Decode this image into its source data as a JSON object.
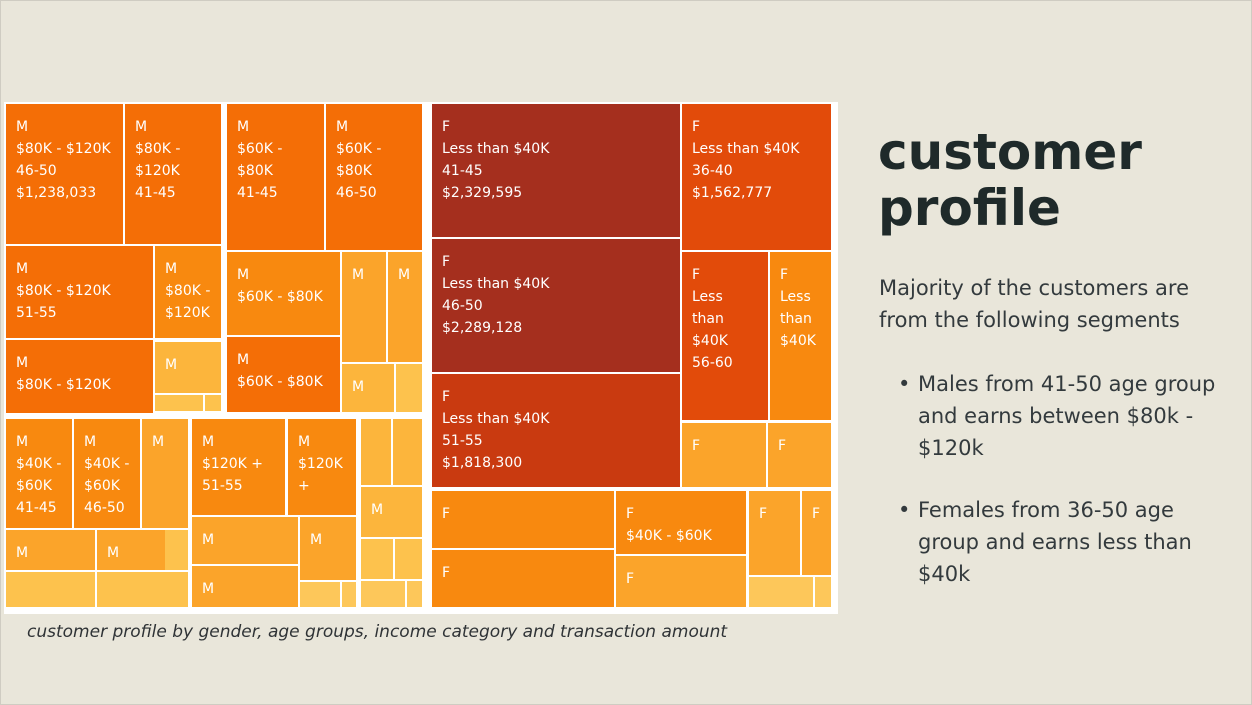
{
  "chart_data": {
    "type": "treemap",
    "caption": "customer profile by gender, age groups, income category and transaction amount",
    "colors": {
      "darkest": "#a52f1e",
      "dark": "#c93a10",
      "deep": "#e24b0a",
      "strong": "#f46e06",
      "medium": "#f8890f",
      "light": "#fba42a",
      "lighter": "#fcb53c",
      "lightest": "#fdc24d",
      "paler": "#fdc75a"
    },
    "tiles": [
      {
        "lines": [
          "M",
          "$80K - $120K",
          "46-50",
          "$1,238,033"
        ],
        "value": 1238033
      },
      {
        "lines": [
          "M",
          "$80K -",
          "$120K",
          "41-45"
        ]
      },
      {
        "lines": [
          "M",
          "$60K -",
          "$80K",
          "41-45"
        ]
      },
      {
        "lines": [
          "M",
          "$60K -",
          "$80K",
          "46-50"
        ]
      },
      {
        "lines": [
          "M",
          "$80K - $120K",
          "51-55"
        ]
      },
      {
        "lines": [
          "M",
          "$80K -",
          "$120K"
        ]
      },
      {
        "lines": [
          "M",
          "$60K - $80K"
        ]
      },
      {
        "lines": [
          "M"
        ]
      },
      {
        "lines": [
          "M"
        ]
      },
      {
        "lines": [
          "M",
          "$80K - $120K"
        ]
      },
      {
        "lines": [
          "M"
        ]
      },
      {
        "lines": [
          "M",
          "$60K - $80K"
        ]
      },
      {
        "lines": [
          "M"
        ]
      },
      {
        "lines": [
          "M",
          "$40K -",
          "$60K",
          "41-45"
        ]
      },
      {
        "lines": [
          "M",
          "$40K -",
          "$60K",
          "46-50"
        ]
      },
      {
        "lines": [
          "M"
        ]
      },
      {
        "lines": [
          "M",
          "$120K +",
          "51-55"
        ]
      },
      {
        "lines": [
          "M",
          "$120K",
          "+"
        ]
      },
      {
        "lines": [
          "M"
        ]
      },
      {
        "lines": [
          "M"
        ]
      },
      {
        "lines": [
          "M"
        ]
      },
      {
        "lines": [
          "M"
        ]
      },
      {
        "lines": [
          "M"
        ]
      },
      {
        "lines": [
          "M"
        ]
      },
      {
        "lines": [
          "F",
          "Less than $40K",
          "41-45",
          "$2,329,595"
        ],
        "value": 2329595
      },
      {
        "lines": [
          "F",
          "Less than $40K",
          "36-40",
          "$1,562,777"
        ],
        "value": 1562777
      },
      {
        "lines": [
          "F",
          "Less than $40K",
          "46-50",
          "$2,289,128"
        ],
        "value": 2289128
      },
      {
        "lines": [
          "F",
          "Less",
          "than",
          "$40K",
          "56-60"
        ]
      },
      {
        "lines": [
          "F",
          "Less",
          "than",
          "$40K"
        ]
      },
      {
        "lines": [
          "F",
          "Less than $40K",
          "51-55",
          "$1,818,300"
        ],
        "value": 1818300
      },
      {
        "lines": [
          "F"
        ]
      },
      {
        "lines": [
          "F"
        ]
      },
      {
        "lines": [
          "F"
        ]
      },
      {
        "lines": [
          "F",
          "$40K - $60K"
        ]
      },
      {
        "lines": [
          "F"
        ]
      },
      {
        "lines": [
          "F"
        ]
      },
      {
        "lines": [
          "F"
        ]
      },
      {
        "lines": [
          "F"
        ]
      }
    ]
  },
  "panel": {
    "title_line1": "customer",
    "title_line2": "profile",
    "intro": "Majority of the customers are from the following segments",
    "bullets": [
      "Males from 41-50 age group and earns between $80k - $120k",
      "Females from 36-50 age group and earns less than $40k"
    ]
  }
}
